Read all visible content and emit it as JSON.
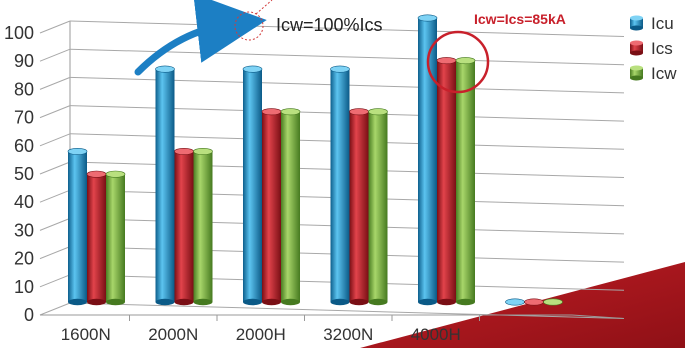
{
  "chart_data": {
    "type": "bar",
    "title": "",
    "xlabel": "",
    "ylabel": "",
    "ylim": [
      0,
      100
    ],
    "yticks": [
      0,
      10,
      20,
      30,
      40,
      50,
      60,
      70,
      80,
      90,
      100
    ],
    "grid": true,
    "legend": "right",
    "categories": [
      "1600N",
      "2000N",
      "2000H",
      "3200N",
      "4000H",
      ""
    ],
    "series": [
      {
        "name": "Icu",
        "color": "#1a9ad6",
        "values": [
          53,
          82,
          82,
          82,
          100,
          0
        ]
      },
      {
        "name": "Ics",
        "color": "#c8202b",
        "values": [
          45,
          53,
          67,
          67,
          85,
          0
        ]
      },
      {
        "name": "Icw",
        "color": "#7cb342",
        "values": [
          45,
          53,
          67,
          67,
          85,
          0
        ]
      }
    ],
    "annotations": {
      "arrow_text": "Icw=100%Ics",
      "circle_text": "Icw=Ics=85kA"
    }
  }
}
